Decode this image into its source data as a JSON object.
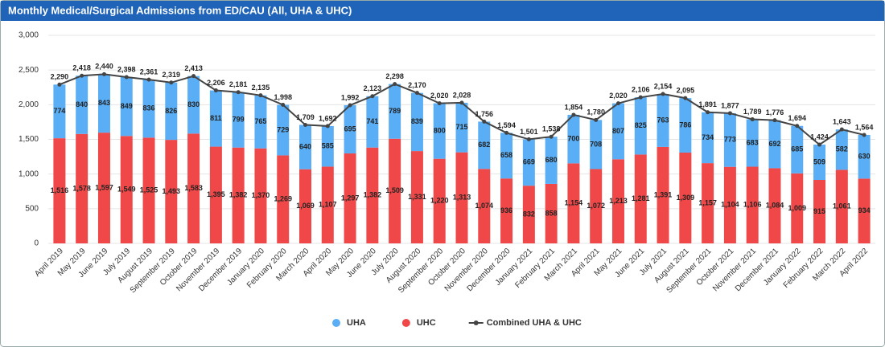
{
  "chart_data": {
    "type": "bar",
    "stacked": true,
    "title": "Monthly Medical/Surgical Admissions from ED/CAU (All, UHA & UHC)",
    "categories": [
      "April 2019",
      "May 2019",
      "June 2019",
      "July 2019",
      "August 2019",
      "September 2019",
      "October 2019",
      "November 2019",
      "December 2019",
      "January 2020",
      "February 2020",
      "March 2020",
      "April 2020",
      "May 2020",
      "June 2020",
      "July 2020",
      "August 2020",
      "September 2020",
      "October 2020",
      "November 2020",
      "December 2020",
      "January 2021",
      "February 2021",
      "March 2021",
      "April 2021",
      "May 2021",
      "June 2021",
      "July 2021",
      "August 2021",
      "September 2021",
      "October 2021",
      "November 2021",
      "December 2021",
      "January 2022",
      "February 2022",
      "March 2022",
      "April 2022"
    ],
    "series": [
      {
        "name": "UHA",
        "type": "bar",
        "color": "#5aaef5",
        "values": [
          774,
          840,
          843,
          849,
          836,
          826,
          830,
          811,
          799,
          765,
          729,
          640,
          585,
          695,
          741,
          789,
          839,
          800,
          715,
          682,
          658,
          669,
          680,
          700,
          708,
          807,
          825,
          763,
          786,
          734,
          773,
          683,
          692,
          685,
          509,
          582,
          630
        ]
      },
      {
        "name": "UHC",
        "type": "bar",
        "color": "#f04848",
        "values": [
          1516,
          1578,
          1597,
          1549,
          1525,
          1493,
          1583,
          1395,
          1382,
          1370,
          1269,
          1069,
          1107,
          1297,
          1382,
          1509,
          1331,
          1220,
          1313,
          1074,
          936,
          832,
          858,
          1154,
          1072,
          1213,
          1281,
          1391,
          1309,
          1157,
          1104,
          1106,
          1084,
          1009,
          915,
          1061,
          934
        ],
        "value_labels": [
          "1,516",
          "1,578",
          "1,597",
          "1,549",
          "1,525",
          "1,493",
          "1,583",
          "1,395",
          "1,382",
          "1,370",
          "1,269",
          "1,069",
          "1,107",
          "1,297",
          "1,382",
          "1,509",
          "1,331",
          "1,220",
          "1,313",
          "1,074",
          "936",
          "832",
          "858",
          "1,154",
          "1,072",
          "1,213",
          "1,281",
          "1,391",
          "1,309",
          "1,157",
          "1,104",
          "1,106",
          "1,084",
          "1,009",
          "915",
          "1,061",
          "934"
        ]
      },
      {
        "name": "Combined UHA & UHC",
        "type": "line",
        "color": "#444444",
        "values": [
          2290,
          2418,
          2440,
          2398,
          2361,
          2319,
          2413,
          2206,
          2181,
          2135,
          1998,
          1709,
          1692,
          1992,
          2123,
          2298,
          2170,
          2020,
          2028,
          1756,
          1594,
          1501,
          1538,
          1854,
          1780,
          2020,
          2106,
          2154,
          2095,
          1891,
          1877,
          1789,
          1776,
          1694,
          1424,
          1643,
          1564
        ],
        "value_labels": [
          "2,290",
          "2,418",
          "2,440",
          "2,398",
          "2,361",
          "2,319",
          "2,413",
          "2,206",
          "2,181",
          "2,135",
          "1,998",
          "1,709",
          "1,692",
          "1,992",
          "2,123",
          "2,298",
          "2,170",
          "2,020",
          "2,028",
          "1,756",
          "1,594",
          "1,501",
          "1,538",
          "1,854",
          "1,780",
          "2,020",
          "2,106",
          "2,154",
          "2,095",
          "1,891",
          "1,877",
          "1,789",
          "1,776",
          "1,694",
          "1,424",
          "1,643",
          "1,564"
        ]
      }
    ],
    "ylim": [
      0,
      3000
    ],
    "yticks": [
      0,
      500,
      {
        "value": 1000,
        "label": "1,000"
      },
      {
        "value": 1500,
        "label": "1,500"
      },
      {
        "value": 2000,
        "label": "2,000"
      },
      {
        "value": 2500,
        "label": "2,500"
      },
      {
        "value": 3000,
        "label": "3,000"
      }
    ],
    "grid": true,
    "legend": "bottom"
  }
}
